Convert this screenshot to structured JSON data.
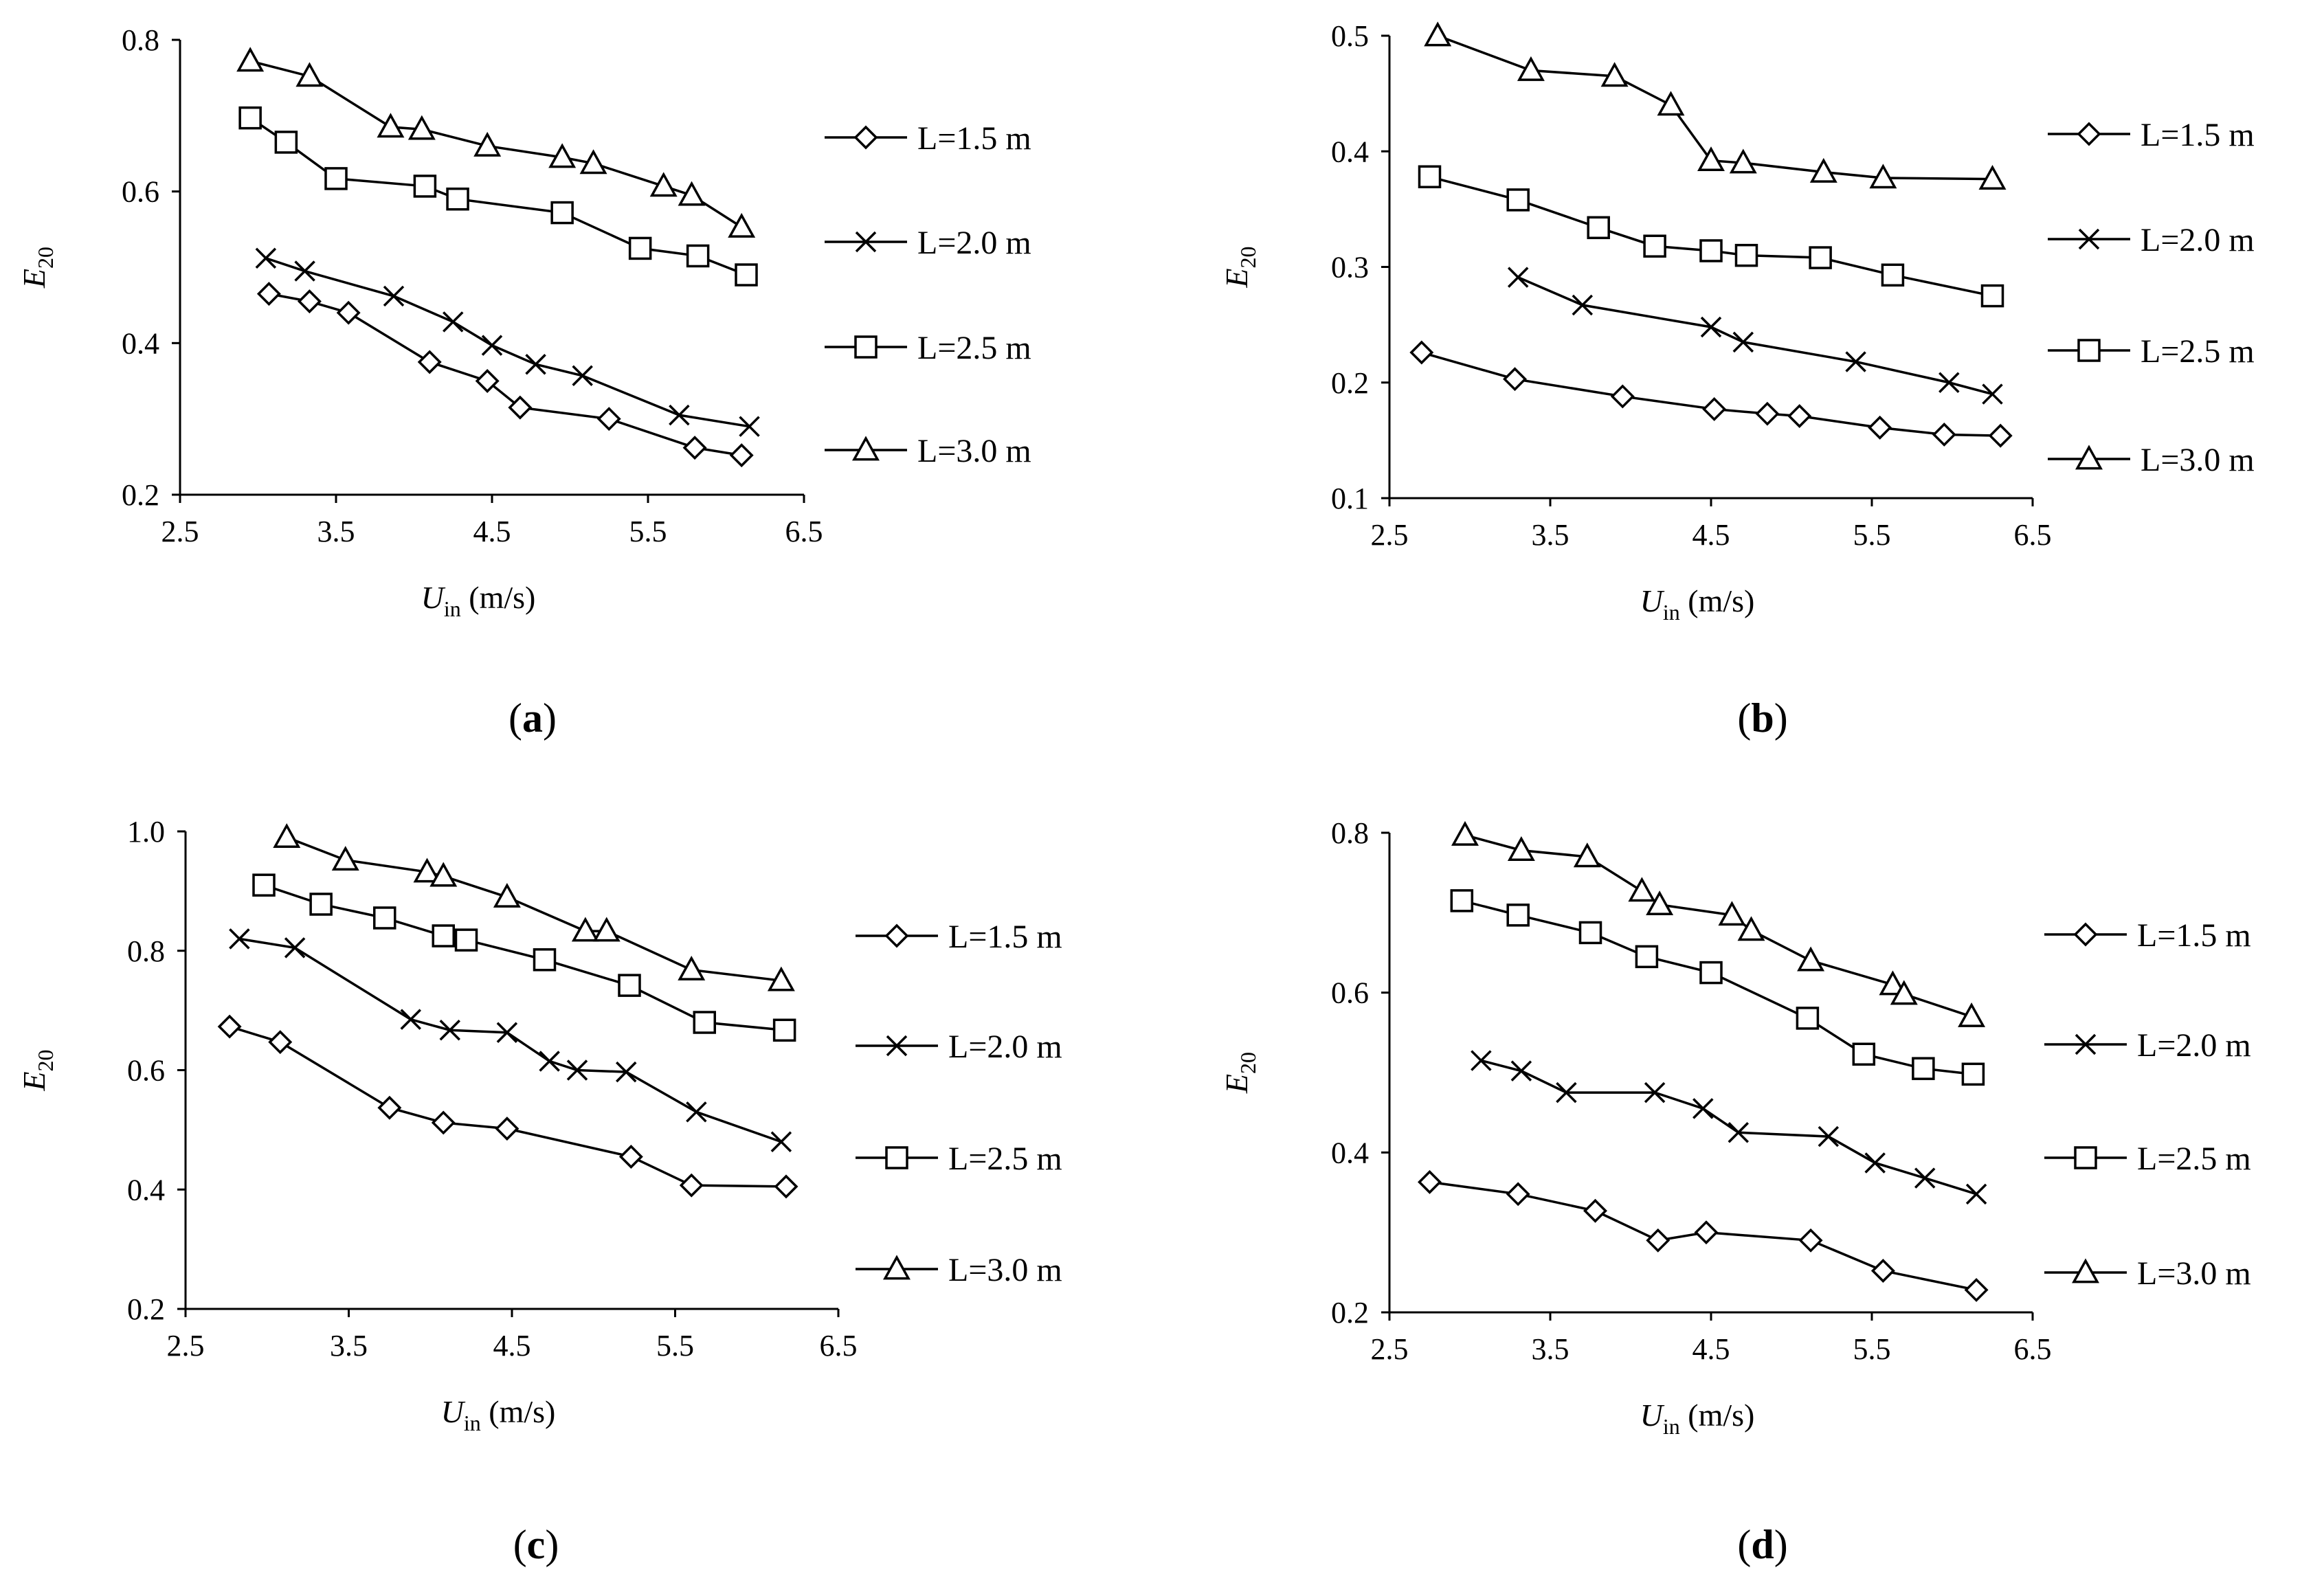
{
  "figure": {
    "background": "#ffffff",
    "line_color": "#000000"
  },
  "chart_data": [
    {
      "id": "a",
      "panel_label": "a",
      "type": "line",
      "xlabel_var": "U",
      "xlabel_sub": "in",
      "xlabel_unit": " (m/s)",
      "ylabel_var": "E",
      "ylabel_sub": "20",
      "xlim": [
        2.5,
        6.5
      ],
      "xticks": [
        "2.5",
        "3.5",
        "4.5",
        "5.5",
        "6.5"
      ],
      "ylim": [
        0.2,
        0.8
      ],
      "yticks": [
        "0.2",
        "0.4",
        "0.6",
        "0.8"
      ],
      "legend_position": "right",
      "series": [
        {
          "name": "L=1.5 m",
          "marker": "diamond",
          "x": [
            3.07,
            3.33,
            3.58,
            4.1,
            4.47,
            4.68,
            5.25,
            5.8,
            6.1
          ],
          "y": [
            0.465,
            0.455,
            0.44,
            0.375,
            0.35,
            0.315,
            0.3,
            0.262,
            0.252
          ]
        },
        {
          "name": "L=2.0 m",
          "marker": "cross",
          "x": [
            3.05,
            3.3,
            3.87,
            4.25,
            4.5,
            4.78,
            5.08,
            5.7,
            6.15
          ],
          "y": [
            0.512,
            0.495,
            0.462,
            0.428,
            0.397,
            0.372,
            0.357,
            0.305,
            0.29
          ]
        },
        {
          "name": "L=2.5 m",
          "marker": "square",
          "x": [
            2.95,
            3.18,
            3.5,
            4.07,
            4.28,
            4.95,
            5.45,
            5.82,
            6.13
          ],
          "y": [
            0.697,
            0.665,
            0.617,
            0.607,
            0.59,
            0.572,
            0.525,
            0.515,
            0.49
          ]
        },
        {
          "name": "L=3.0 m",
          "marker": "triangle",
          "x": [
            2.95,
            3.33,
            3.85,
            4.05,
            4.47,
            4.95,
            5.15,
            5.6,
            5.78,
            6.1
          ],
          "y": [
            0.772,
            0.752,
            0.685,
            0.682,
            0.66,
            0.645,
            0.637,
            0.607,
            0.595,
            0.553
          ]
        }
      ]
    },
    {
      "id": "b",
      "panel_label": "b",
      "type": "line",
      "xlabel_var": "U",
      "xlabel_sub": "in",
      "xlabel_unit": " (m/s)",
      "ylabel_var": "E",
      "ylabel_sub": "20",
      "xlim": [
        2.5,
        6.5
      ],
      "xticks": [
        "2.5",
        "3.5",
        "4.5",
        "5.5",
        "6.5"
      ],
      "ylim": [
        0.1,
        0.5
      ],
      "yticks": [
        "0.1",
        "0.2",
        "0.3",
        "0.4",
        "0.5"
      ],
      "legend_position": "right",
      "series": [
        {
          "name": "L=1.5 m",
          "marker": "diamond",
          "x": [
            2.7,
            3.28,
            3.95,
            4.52,
            4.85,
            5.05,
            5.55,
            5.95,
            6.3
          ],
          "y": [
            0.226,
            0.203,
            0.188,
            0.177,
            0.173,
            0.171,
            0.161,
            0.155,
            0.154
          ]
        },
        {
          "name": "L=2.0 m",
          "marker": "cross",
          "x": [
            3.3,
            3.7,
            4.5,
            4.7,
            5.4,
            5.98,
            6.25
          ],
          "y": [
            0.291,
            0.267,
            0.248,
            0.235,
            0.218,
            0.2,
            0.19
          ]
        },
        {
          "name": "L=2.5 m",
          "marker": "square",
          "x": [
            2.75,
            3.3,
            3.8,
            4.15,
            4.5,
            4.72,
            5.18,
            5.63,
            6.25
          ],
          "y": [
            0.378,
            0.358,
            0.334,
            0.318,
            0.314,
            0.31,
            0.308,
            0.293,
            0.275
          ]
        },
        {
          "name": "L=3.0 m",
          "marker": "triangle",
          "x": [
            2.8,
            3.38,
            3.9,
            4.25,
            4.5,
            4.7,
            5.2,
            5.57,
            6.25
          ],
          "y": [
            0.5,
            0.47,
            0.465,
            0.44,
            0.392,
            0.39,
            0.382,
            0.377,
            0.376
          ]
        }
      ]
    },
    {
      "id": "c",
      "panel_label": "c",
      "type": "line",
      "xlabel_var": "U",
      "xlabel_sub": "in",
      "xlabel_unit": " (m/s)",
      "ylabel_var": "E",
      "ylabel_sub": "20",
      "xlim": [
        2.5,
        6.5
      ],
      "xticks": [
        "2.5",
        "3.5",
        "4.5",
        "5.5",
        "6.5"
      ],
      "ylim": [
        0.2,
        1.0
      ],
      "yticks": [
        "0.2",
        "0.4",
        "0.6",
        "0.8",
        "1.0"
      ],
      "legend_position": "right",
      "series": [
        {
          "name": "L=1.5 m",
          "marker": "diamond",
          "x": [
            2.77,
            3.08,
            3.75,
            4.08,
            4.47,
            5.23,
            5.6,
            6.18
          ],
          "y": [
            0.673,
            0.647,
            0.537,
            0.512,
            0.502,
            0.455,
            0.407,
            0.405
          ]
        },
        {
          "name": "L=2.0 m",
          "marker": "cross",
          "x": [
            2.83,
            3.17,
            3.88,
            4.12,
            4.47,
            4.73,
            4.9,
            5.2,
            5.63,
            6.15
          ],
          "y": [
            0.82,
            0.805,
            0.685,
            0.667,
            0.663,
            0.615,
            0.6,
            0.597,
            0.53,
            0.48
          ]
        },
        {
          "name": "L=2.5 m",
          "marker": "square",
          "x": [
            2.98,
            3.33,
            3.72,
            4.08,
            4.22,
            4.7,
            5.22,
            5.68,
            6.17
          ],
          "y": [
            0.91,
            0.878,
            0.855,
            0.825,
            0.818,
            0.785,
            0.742,
            0.68,
            0.667
          ]
        },
        {
          "name": "L=3.0 m",
          "marker": "triangle",
          "x": [
            3.12,
            3.48,
            3.98,
            4.08,
            4.47,
            4.95,
            5.08,
            5.6,
            6.15
          ],
          "y": [
            0.99,
            0.952,
            0.932,
            0.925,
            0.89,
            0.833,
            0.833,
            0.768,
            0.75
          ]
        }
      ]
    },
    {
      "id": "d",
      "panel_label": "d",
      "type": "line",
      "xlabel_var": "U",
      "xlabel_sub": "in",
      "xlabel_unit": " (m/s)",
      "ylabel_var": "E",
      "ylabel_sub": "20",
      "xlim": [
        2.5,
        6.5
      ],
      "xticks": [
        "2.5",
        "3.5",
        "4.5",
        "5.5",
        "6.5"
      ],
      "ylim": [
        0.2,
        0.8
      ],
      "yticks": [
        "0.2",
        "0.4",
        "0.6",
        "0.8"
      ],
      "legend_position": "right",
      "series": [
        {
          "name": "L=1.5 m",
          "marker": "diamond",
          "x": [
            2.75,
            3.3,
            3.78,
            4.17,
            4.47,
            5.12,
            5.57,
            6.15
          ],
          "y": [
            0.363,
            0.348,
            0.327,
            0.29,
            0.3,
            0.29,
            0.252,
            0.228
          ]
        },
        {
          "name": "L=2.0 m",
          "marker": "cross",
          "x": [
            3.07,
            3.32,
            3.6,
            4.15,
            4.45,
            4.67,
            5.23,
            5.52,
            5.83,
            6.15
          ],
          "y": [
            0.515,
            0.502,
            0.475,
            0.475,
            0.455,
            0.425,
            0.42,
            0.387,
            0.368,
            0.348
          ]
        },
        {
          "name": "L=2.5 m",
          "marker": "square",
          "x": [
            2.95,
            3.3,
            3.75,
            4.1,
            4.5,
            5.1,
            5.45,
            5.82,
            6.13
          ],
          "y": [
            0.715,
            0.697,
            0.675,
            0.645,
            0.625,
            0.568,
            0.523,
            0.505,
            0.498
          ]
        },
        {
          "name": "L=3.0 m",
          "marker": "triangle",
          "x": [
            2.97,
            3.32,
            3.73,
            4.07,
            4.18,
            4.63,
            4.75,
            5.12,
            5.63,
            5.7,
            6.12
          ],
          "y": [
            0.797,
            0.778,
            0.77,
            0.727,
            0.71,
            0.697,
            0.678,
            0.64,
            0.61,
            0.598,
            0.57
          ]
        }
      ]
    }
  ]
}
